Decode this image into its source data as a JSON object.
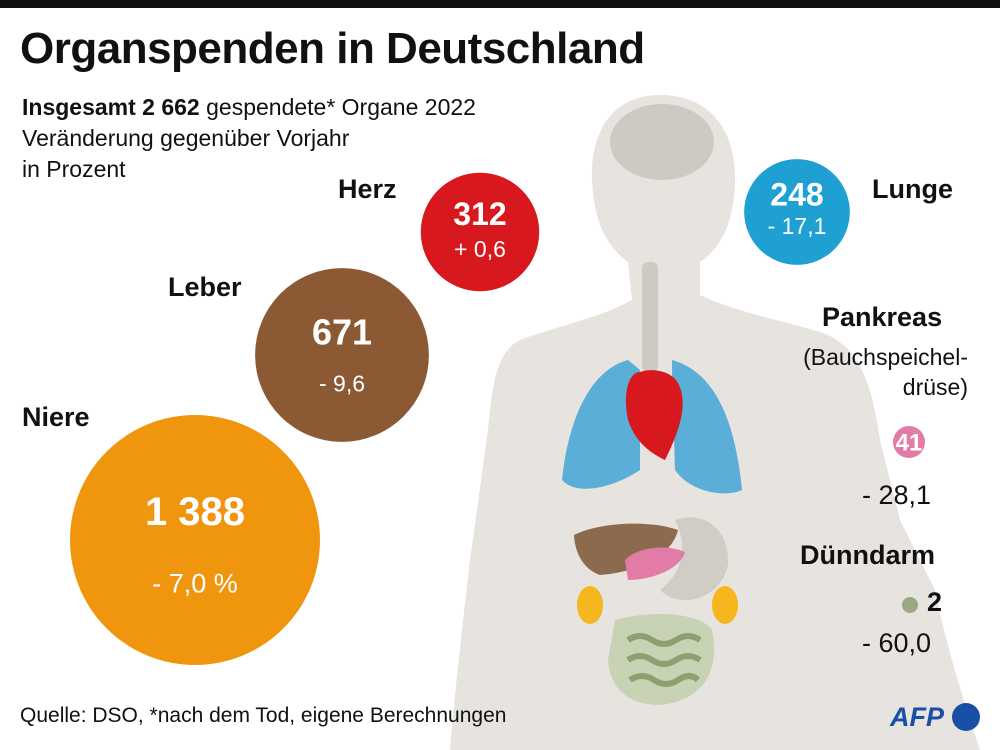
{
  "title": "Organspenden in Deutschland",
  "subtitle": {
    "bold": "Insgesamt 2 662",
    "rest": " gespendete* Organe 2022",
    "line2": "Veränderung gegenüber Vorjahr",
    "line3": "in Prozent"
  },
  "source": "Quelle: DSO, *nach dem Tod, eigene Berechnungen",
  "logo": "AFP",
  "chart_data": {
    "type": "bubble",
    "title": "Organspenden in Deutschland",
    "total": "2 662",
    "year": 2022,
    "items": [
      {
        "name": "Niere",
        "value": 1388,
        "value_label": "1 388",
        "change": -7.0,
        "change_label": "- 7,0 %",
        "color": "#f0950e"
      },
      {
        "name": "Leber",
        "value": 671,
        "value_label": "671",
        "change": -9.6,
        "change_label": "- 9,6",
        "color": "#8b5a34"
      },
      {
        "name": "Herz",
        "value": 312,
        "value_label": "312",
        "change": 0.6,
        "change_label": "+ 0,6",
        "color": "#d7191f"
      },
      {
        "name": "Lunge",
        "value": 248,
        "value_label": "248",
        "change": -17.1,
        "change_label": "- 17,1",
        "color": "#1ea0d2"
      },
      {
        "name": "Pankreas",
        "note": "(Bauchspeichel-drüse)",
        "value": 41,
        "value_label": "41",
        "change": -28.1,
        "change_label": "- 28,1",
        "color": "#e27ba6"
      },
      {
        "name": "Dünndarm",
        "value": 2,
        "value_label": "2",
        "change": -60.0,
        "change_label": "- 60,0",
        "color": "#9aa884"
      }
    ]
  }
}
